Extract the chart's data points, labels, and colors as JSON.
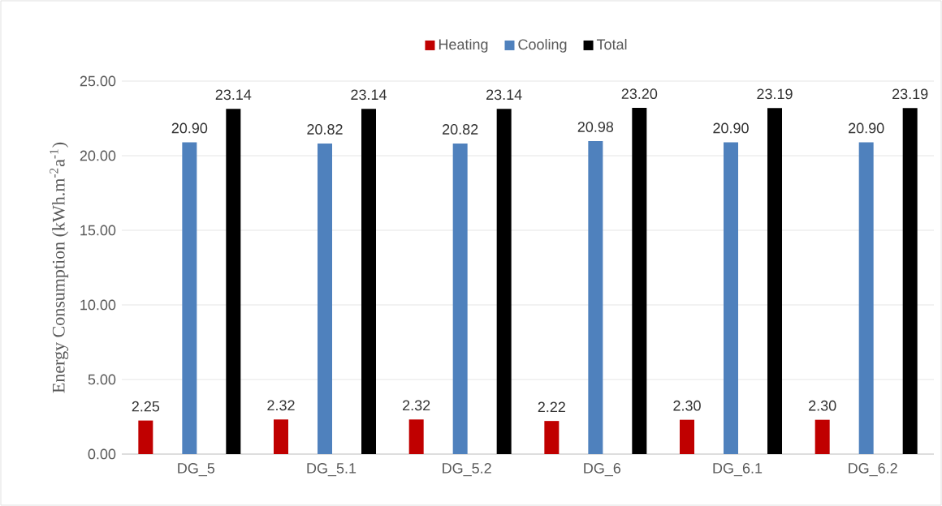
{
  "chart_data": {
    "type": "bar",
    "ylabel": "Energy Consumption (kWh.m$^{-2}$a$^{-1}$)",
    "categories": [
      "DG_5",
      "DG_5.1",
      "DG_5.2",
      "DG_6",
      "DG_6.1",
      "DG_6.2"
    ],
    "series": [
      {
        "name": "Heating",
        "color": "#c00000",
        "values": [
          2.25,
          2.32,
          2.32,
          2.22,
          2.3,
          2.3
        ],
        "value_labels": [
          "2.25",
          "2.32",
          "2.32",
          "2.22",
          "2.30",
          "2.30"
        ]
      },
      {
        "name": "Cooling",
        "color": "#4f81bd",
        "values": [
          20.9,
          20.82,
          20.82,
          20.98,
          20.9,
          20.9
        ],
        "value_labels": [
          "20.90",
          "20.82",
          "20.82",
          "20.98",
          "20.90",
          "20.90"
        ]
      },
      {
        "name": "Total",
        "color": "#000000",
        "values": [
          23.14,
          23.14,
          23.14,
          23.2,
          23.19,
          23.19
        ],
        "value_labels": [
          "23.14",
          "23.14",
          "23.14",
          "23.20",
          "23.19",
          "23.19"
        ]
      }
    ],
    "ylim": [
      0,
      25
    ],
    "yticks": [
      {
        "value": 0,
        "label": "0.00"
      },
      {
        "value": 5,
        "label": "5.00"
      },
      {
        "value": 10,
        "label": "10.00"
      },
      {
        "value": 15,
        "label": "15.00"
      },
      {
        "value": 20,
        "label": "20.00"
      },
      {
        "value": 25,
        "label": "25.00"
      }
    ],
    "grid": "y",
    "legend": "top"
  }
}
